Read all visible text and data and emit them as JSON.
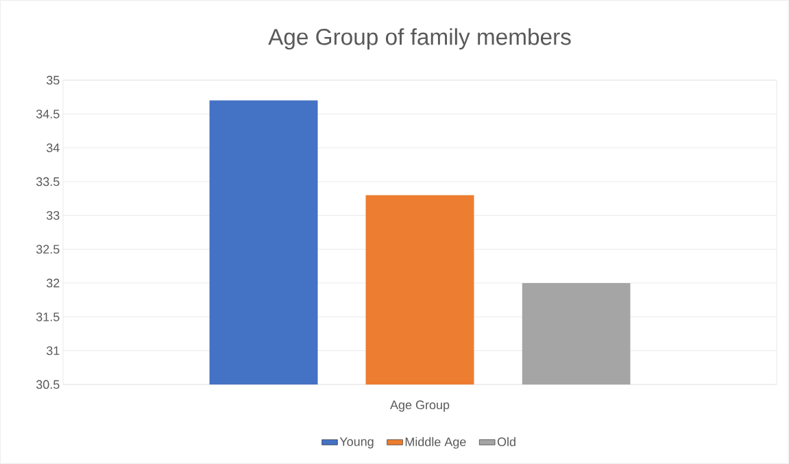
{
  "chart_data": {
    "type": "bar",
    "title": "Age Group of family members",
    "categories": [
      "Age Group"
    ],
    "series": [
      {
        "name": "Young",
        "color": "#4472c4",
        "values": [
          34.7
        ]
      },
      {
        "name": "Middle Age",
        "color": "#ed7d31",
        "values": [
          33.3
        ]
      },
      {
        "name": "Old",
        "color": "#a5a5a5",
        "values": [
          32
        ]
      }
    ],
    "ylim": [
      30.5,
      35
    ],
    "yticks": [
      30.5,
      31,
      31.5,
      32,
      32.5,
      33,
      33.5,
      34,
      34.5,
      35
    ],
    "grid": "y",
    "legend": "bottom"
  }
}
